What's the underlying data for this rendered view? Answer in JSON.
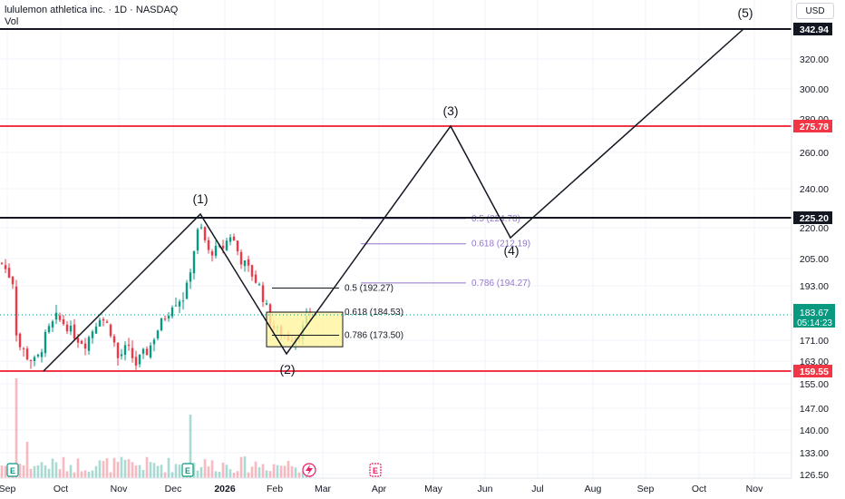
{
  "header": {
    "symbol_title": "lululemon athletica inc. · 1D · NASDAQ",
    "vol_label": "Vol"
  },
  "price_scale": {
    "currency_button": "USD",
    "ticks": [
      "320.00",
      "300.00",
      "280.00",
      "260.00",
      "240.00",
      "220.00",
      "205.00",
      "193.00",
      "171.00",
      "163.00",
      "155.00",
      "147.00",
      "140.00",
      "133.00",
      "126.50"
    ]
  },
  "time_axis": {
    "labels": [
      "Sep",
      "Oct",
      "Nov",
      "Dec",
      "2026",
      "Feb",
      "Mar",
      "Apr",
      "May",
      "Jun",
      "Jul",
      "Aug",
      "Sep",
      "Oct",
      "Nov"
    ]
  },
  "levels": [
    {
      "label": "342.94",
      "value": 342.94,
      "color": "#131722",
      "line": "#131722"
    },
    {
      "label": "275.78",
      "value": 275.78,
      "color": "#f23645",
      "line": "#f23645"
    },
    {
      "label": "225.20",
      "value": 225.2,
      "color": "#131722",
      "line": "#131722"
    },
    {
      "label": "159.55",
      "value": 159.55,
      "color": "#f23645",
      "line": "#f23645"
    }
  ],
  "current_price": {
    "price": "183.67",
    "countdown": "05:14:23",
    "value": 183.67,
    "color": "#089981"
  },
  "wave_labels": {
    "w1": "(1)",
    "w2": "(2)",
    "w3": "(3)",
    "w4": "(4)",
    "w5": "(5)"
  },
  "fib_small": [
    {
      "label": "0.5 (192.27)",
      "value": 192.27
    },
    {
      "label": "0.618 (184.53)",
      "value": 184.53
    },
    {
      "label": "0.786 (173.50)",
      "value": 173.5
    }
  ],
  "fib_large": [
    {
      "label": "0.5 (224.78)",
      "value": 224.78
    },
    {
      "label": "0.618 (212.19)",
      "value": 212.19
    },
    {
      "label": "0.786 (194.27)",
      "value": 194.27
    }
  ],
  "colors": {
    "bull": "#089981",
    "bear": "#f23645",
    "fib_purple": "#9575cd",
    "zone_fill": "#fff59d",
    "zone_border": "#131722"
  },
  "icons": {
    "earnings": "earnings-e-icon",
    "dividend": "lightning-icon"
  },
  "earnings_marker": "E"
}
